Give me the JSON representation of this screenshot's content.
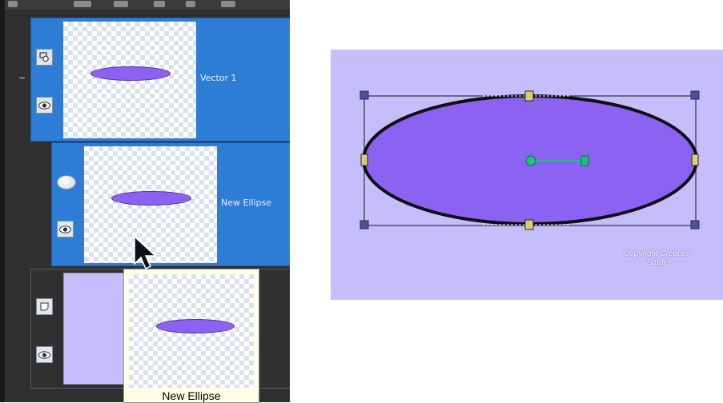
{
  "layers_panel": {
    "layers": [
      {
        "name": "Vector 1",
        "type_icon": "vector-group-icon",
        "visible_icon": "eye-icon",
        "selected": true
      },
      {
        "name": "New Ellipse",
        "type_icon": "ellipse-object-icon",
        "visible_icon": "eye-icon",
        "selected": true
      },
      {
        "name": "",
        "type_icon": "raster-layer-icon",
        "visible_icon": "eye-icon",
        "selected": false
      }
    ],
    "collapse_symbol": "−",
    "tooltip": {
      "label": "New Ellipse"
    }
  },
  "canvas": {
    "background_color": "#c6bdfb",
    "ellipse_fill": "#8b62f2",
    "handle_color": "#1fc27a",
    "watermark": "Copyright Creative-Studio"
  },
  "colors": {
    "panel_bg": "#2f2f2f",
    "selected_layer": "#2d7dd6",
    "tooltip_bg": "#fffde6"
  }
}
